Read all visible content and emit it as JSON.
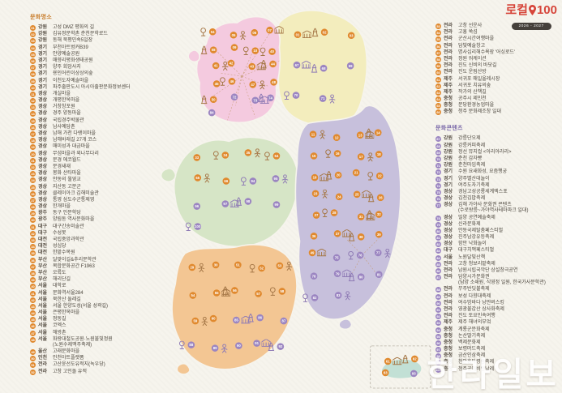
{
  "theme": {
    "spot_color": "#e0892e",
    "content_color": "#9b85c1"
  },
  "header_left": "문화명소",
  "header_right": "문화콘텐츠",
  "logo": {
    "brand": "로컬",
    "number": "100",
    "years": "2026 - 2027"
  },
  "watermark": "한라일보",
  "spots": [
    {
      "n": "01",
      "region": "강원",
      "name": "고성 DMZ 평화의 길"
    },
    {
      "n": "02",
      "region": "강원",
      "name": "김유정문학촌 춘천문학로드"
    },
    {
      "n": "03",
      "region": "강원",
      "name": "동해 북평민속5일장"
    },
    {
      "n": "04",
      "region": "경기",
      "name": "부천아트벙커B39"
    },
    {
      "n": "05",
      "region": "경기",
      "name": "안양예술공원"
    },
    {
      "n": "06",
      "region": "경기",
      "name": "매향리평화생태공원"
    },
    {
      "n": "07",
      "region": "경기",
      "name": "양주 회암사지"
    },
    {
      "n": "08",
      "region": "경기",
      "name": "용인어린이상상의숲"
    },
    {
      "n": "09",
      "region": "경기",
      "name": "이천도자예술마을"
    },
    {
      "n": "10",
      "region": "경기",
      "name": "파주출판도시 아시아출판문화정보센터"
    },
    {
      "n": "11",
      "region": "경상",
      "name": "개실마을"
    },
    {
      "n": "12",
      "region": "경상",
      "name": "개평한옥마을"
    },
    {
      "n": "13",
      "region": "경상",
      "name": "거창창포원"
    },
    {
      "n": "14",
      "region": "경상",
      "name": "경주 양동마을"
    },
    {
      "n": "15",
      "region": "경상",
      "name": "국립경주박물관"
    },
    {
      "n": "16",
      "region": "경상",
      "name": "남사예담촌"
    },
    {
      "n": "17",
      "region": "경상",
      "name": "남해 가천 다랭이마을"
    },
    {
      "n": "18",
      "region": "경상",
      "name": "남해바래길 27개 코스"
    },
    {
      "n": "19",
      "region": "경상",
      "name": "매미성과 대금마을"
    },
    {
      "n": "20",
      "region": "경상",
      "name": "무섬마을과 외나무다리"
    },
    {
      "n": "21",
      "region": "경상",
      "name": "문경 에코월드"
    },
    {
      "n": "22",
      "region": "경상",
      "name": "문경새재"
    },
    {
      "n": "23",
      "region": "경상",
      "name": "봉화 산타마을"
    },
    {
      "n": "24",
      "region": "경상",
      "name": "안동의 월영교"
    },
    {
      "n": "25",
      "region": "경상",
      "name": "지산동 고분군"
    },
    {
      "n": "26",
      "region": "경상",
      "name": "클레이아크 김해미술관"
    },
    {
      "n": "27",
      "region": "경상",
      "name": "통영 삼도수군통제영"
    },
    {
      "n": "28",
      "region": "경상",
      "name": "한개마을"
    },
    {
      "n": "29",
      "region": "광주",
      "name": "동구 인문학당"
    },
    {
      "n": "30",
      "region": "광주",
      "name": "양림동 역사문화마을"
    },
    {
      "n": "31",
      "region": "대구",
      "name": "대구간송미술관"
    },
    {
      "n": "32",
      "region": "대구",
      "name": "수성못"
    },
    {
      "n": "33",
      "region": "대전",
      "name": "국립중앙과학관"
    },
    {
      "n": "34",
      "region": "대전",
      "name": "성심당"
    },
    {
      "n": "35",
      "region": "대전",
      "name": "한밭수목원"
    },
    {
      "n": "36",
      "region": "부산",
      "name": "달맞이길&추리문학관"
    },
    {
      "n": "37",
      "region": "부산",
      "name": "복합문화공간 F1963"
    },
    {
      "n": "38",
      "region": "부산",
      "name": "오륙도"
    },
    {
      "n": "39",
      "region": "부산",
      "name": "해리단길"
    },
    {
      "n": "40",
      "region": "서울",
      "name": "대학로"
    },
    {
      "n": "41",
      "region": "서울",
      "name": "문화역서울284"
    },
    {
      "n": "42",
      "region": "서울",
      "name": "북한산 둘레길"
    },
    {
      "n": "43",
      "region": "서울",
      "name": "서울 한양도성(서울 성곽길)"
    },
    {
      "n": "44",
      "region": "서울",
      "name": "은평한옥마을"
    },
    {
      "n": "45",
      "region": "서울",
      "name": "정동길"
    },
    {
      "n": "46",
      "region": "서울",
      "name": "코엑스"
    },
    {
      "n": "47",
      "region": "서울",
      "name": "해방촌"
    },
    {
      "n": "48",
      "region": "서울",
      "name": "화랑대철도공원·노원불빛정원",
      "name2": "(노원수제맥주축제)"
    },
    {
      "n": "49",
      "region": "울산",
      "name": "고래문화마을"
    },
    {
      "n": "50",
      "region": "인천",
      "name": "인천아트플랫폼"
    },
    {
      "n": "51",
      "region": "전라",
      "name": "고산윤선도유적지(녹우당)"
    },
    {
      "n": "52",
      "region": "전라",
      "name": "고창 고인돌 유적"
    },
    {
      "n": "53",
      "region": "전라",
      "name": "고창 선운사"
    },
    {
      "n": "54",
      "region": "전라",
      "name": "고흥 쑥섬"
    },
    {
      "n": "55",
      "region": "전라",
      "name": "군산시간여행마을"
    },
    {
      "n": "56",
      "region": "전라",
      "name": "담빛예술창고"
    },
    {
      "n": "57",
      "region": "전라",
      "name": "명사십리해수욕장 '어싱로드'"
    },
    {
      "n": "58",
      "region": "전라",
      "name": "정원 워케이션"
    },
    {
      "n": "59",
      "region": "전라",
      "name": "진도 신비의 바닷길"
    },
    {
      "n": "60",
      "region": "전라",
      "name": "진도 운림산방"
    },
    {
      "n": "61",
      "region": "제주",
      "name": "서귀포 매일올레시장"
    },
    {
      "n": "62",
      "region": "제주",
      "name": "서귀포 치유의숲"
    },
    {
      "n": "63",
      "region": "제주",
      "name": "작가의 산책길"
    },
    {
      "n": "64",
      "region": "충청",
      "name": "공주시 제민천"
    },
    {
      "n": "65",
      "region": "충청",
      "name": "문당환경농업마을"
    },
    {
      "n": "66",
      "region": "충청",
      "name": "청주 문화제조창 일대"
    }
  ],
  "contents": [
    {
      "n": "67",
      "region": "강원",
      "name": "강릉단오제"
    },
    {
      "n": "68",
      "region": "강원",
      "name": "강릉커피축제"
    },
    {
      "n": "69",
      "region": "강원",
      "name": "정선 뮤지컬 <아리아라리>"
    },
    {
      "n": "70",
      "region": "강원",
      "name": "춘천 감자빵"
    },
    {
      "n": "71",
      "region": "강원",
      "name": "춘천마임축제"
    },
    {
      "n": "72",
      "region": "경기",
      "name": "수원 요새화성, 요즘행궁"
    },
    {
      "n": "73",
      "region": "경기",
      "name": "양주별산대놀이"
    },
    {
      "n": "74",
      "region": "경기",
      "name": "여주도자기축제"
    },
    {
      "n": "75",
      "region": "경상",
      "name": "경남고성공룡세계엑스포"
    },
    {
      "n": "76",
      "region": "경상",
      "name": "김천김밥축제"
    },
    {
      "n": "77",
      "region": "경상",
      "name": "김해 가야사 문화권 콘텐츠",
      "name2": "(수로왕릉~가야역사테마파크 일대)"
    },
    {
      "n": "78",
      "region": "경상",
      "name": "밀양 공연예술축제"
    },
    {
      "n": "79",
      "region": "경상",
      "name": "신라문화제"
    },
    {
      "n": "80",
      "region": "경상",
      "name": "안동국제탈춤페스티벌"
    },
    {
      "n": "81",
      "region": "경상",
      "name": "진주남강유등축제"
    },
    {
      "n": "82",
      "region": "경상",
      "name": "함안 낙화놀이"
    },
    {
      "n": "83",
      "region": "대구",
      "name": "대구치맥페스티벌"
    },
    {
      "n": "84",
      "region": "서울",
      "name": "노원달빛산책"
    },
    {
      "n": "85",
      "region": "전라",
      "name": "고창 청보리밭축제"
    },
    {
      "n": "86",
      "region": "전라",
      "name": "남원시립국악단 상설창극공연"
    },
    {
      "n": "87",
      "region": "전라",
      "name": "담양시가문화권",
      "name2": "(담양 소쇄원, 식영정 일원, 한국가사문학관)"
    },
    {
      "n": "88",
      "region": "전라",
      "name": "무주반딧불축제"
    },
    {
      "n": "89",
      "region": "전라",
      "name": "보성 다향대축제"
    },
    {
      "n": "90",
      "region": "전라",
      "name": "여수밤바다 낭만버스킹"
    },
    {
      "n": "91",
      "region": "전라",
      "name": "영광불갑산 상사화축제"
    },
    {
      "n": "92",
      "region": "전라",
      "name": "진도 토요민속여행"
    },
    {
      "n": "93",
      "region": "제주",
      "name": "제주 해녀의부엌"
    },
    {
      "n": "94",
      "region": "충청",
      "name": "계룡군문화축제"
    },
    {
      "n": "95",
      "region": "충청",
      "name": "논산딸기축제"
    },
    {
      "n": "96",
      "region": "충청",
      "name": "백제문화제"
    },
    {
      "n": "97",
      "region": "충청",
      "name": "보령머드축제"
    },
    {
      "n": "98",
      "region": "충청",
      "name": "금산인삼축제"
    },
    {
      "n": "99",
      "region": "충청",
      "name": "천안흥타령춤축제"
    },
    {
      "n": "100",
      "region": "충청",
      "name": "청주공예비엔날레"
    }
  ],
  "map": {
    "colors": {
      "capital": "#f4cadf",
      "gangwon": "#f3edbd",
      "chungcheong": "#d6e5c6",
      "gyeongsang": "#c7c0dc",
      "jeolla": "#f3c693",
      "jeju": "#c2e0d5"
    },
    "regions": [
      {
        "id": "capital",
        "markers": [
          4,
          5,
          6,
          7,
          8,
          9,
          10,
          40,
          41,
          42,
          43,
          44,
          45,
          46,
          47,
          48,
          50,
          72,
          73,
          74,
          84
        ]
      },
      {
        "id": "gangwon",
        "markers": [
          1,
          2,
          3,
          67,
          68,
          69,
          70,
          71
        ]
      },
      {
        "id": "chungcheong",
        "markers": [
          33,
          34,
          35,
          64,
          65,
          66,
          94,
          95,
          96,
          97,
          98,
          99,
          100
        ]
      },
      {
        "id": "gyeongsang",
        "markers": [
          11,
          12,
          13,
          14,
          15,
          16,
          17,
          18,
          19,
          20,
          21,
          22,
          23,
          24,
          25,
          26,
          27,
          28,
          31,
          32,
          36,
          37,
          38,
          39,
          49,
          75,
          76,
          77,
          78,
          79,
          80,
          81,
          82,
          83
        ]
      },
      {
        "id": "jeolla",
        "markers": [
          29,
          30,
          51,
          52,
          53,
          54,
          55,
          56,
          57,
          58,
          59,
          60,
          85,
          86,
          87,
          88,
          89,
          90,
          91,
          92
        ]
      },
      {
        "id": "jeju",
        "markers": [
          61,
          62,
          63,
          93
        ]
      }
    ]
  }
}
